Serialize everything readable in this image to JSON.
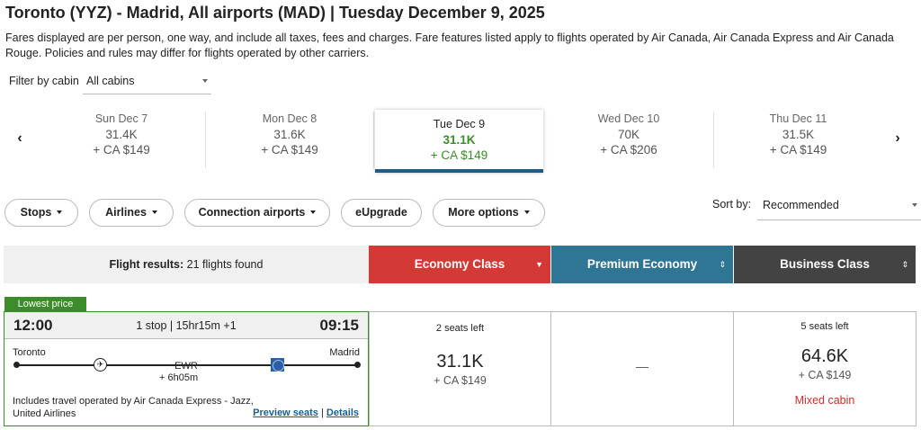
{
  "header": {
    "title": "Toronto (YYZ) - Madrid, All airports (MAD)  |  Tuesday December 9, 2025",
    "disclaimer": "Fares displayed are per person, one way, and include all taxes, fees and charges. Fare features listed apply to flights operated by Air Canada, Air Canada Express and Air Canada Rouge. Policies and rules may differ for flights operated by other carriers."
  },
  "filter": {
    "label": "Filter by cabin",
    "value": "All cabins"
  },
  "dates": [
    {
      "day": "Sun Dec 7",
      "points": "31.4K",
      "cash": "+ CA $149"
    },
    {
      "day": "Mon Dec 8",
      "points": "31.6K",
      "cash": "+ CA $149"
    },
    {
      "day": "Tue Dec 9",
      "points": "31.1K",
      "cash": "+ CA $149"
    },
    {
      "day": "Wed Dec 10",
      "points": "70K",
      "cash": "+ CA $206"
    },
    {
      "day": "Thu Dec 11",
      "points": "31.5K",
      "cash": "+ CA $149"
    }
  ],
  "filters": [
    {
      "label": "Stops"
    },
    {
      "label": "Airlines"
    },
    {
      "label": "Connection airports"
    },
    {
      "label": "eUpgrade"
    },
    {
      "label": "More options"
    }
  ],
  "sort": {
    "label": "Sort by:",
    "value": "Recommended"
  },
  "results": {
    "label": "Flight results:",
    "count": "21 flights found"
  },
  "cabins": {
    "economy": "Economy Class",
    "premium": "Premium Economy",
    "business": "Business Class"
  },
  "flight": {
    "badge": "Lowest price",
    "departure": "12:00",
    "arrival": "09:15",
    "info": "1 stop | 15hr15m +1",
    "from": "Toronto",
    "to": "Madrid",
    "connection": "EWR",
    "layover": "+ 6h05m",
    "operated_by": "Includes travel operated by Air Canada Express - Jazz, United Airlines",
    "preview_link": "Preview seats",
    "separator": "|",
    "details_link": "Details",
    "economy": {
      "seats": "2 seats left",
      "points": "31.1K",
      "cash": "+ CA $149"
    },
    "premium": {
      "empty": "—"
    },
    "business": {
      "seats": "5 seats left",
      "points": "64.6K",
      "cash": "+ CA $149",
      "note": "Mixed cabin"
    }
  },
  "colors": {
    "economy": "#d33a35",
    "premium": "#2e7694",
    "business": "#434343",
    "lowest_price": "#3c8c2c",
    "selected_date_border": "#1f5c85",
    "mixed_cabin": "#c8302c"
  }
}
